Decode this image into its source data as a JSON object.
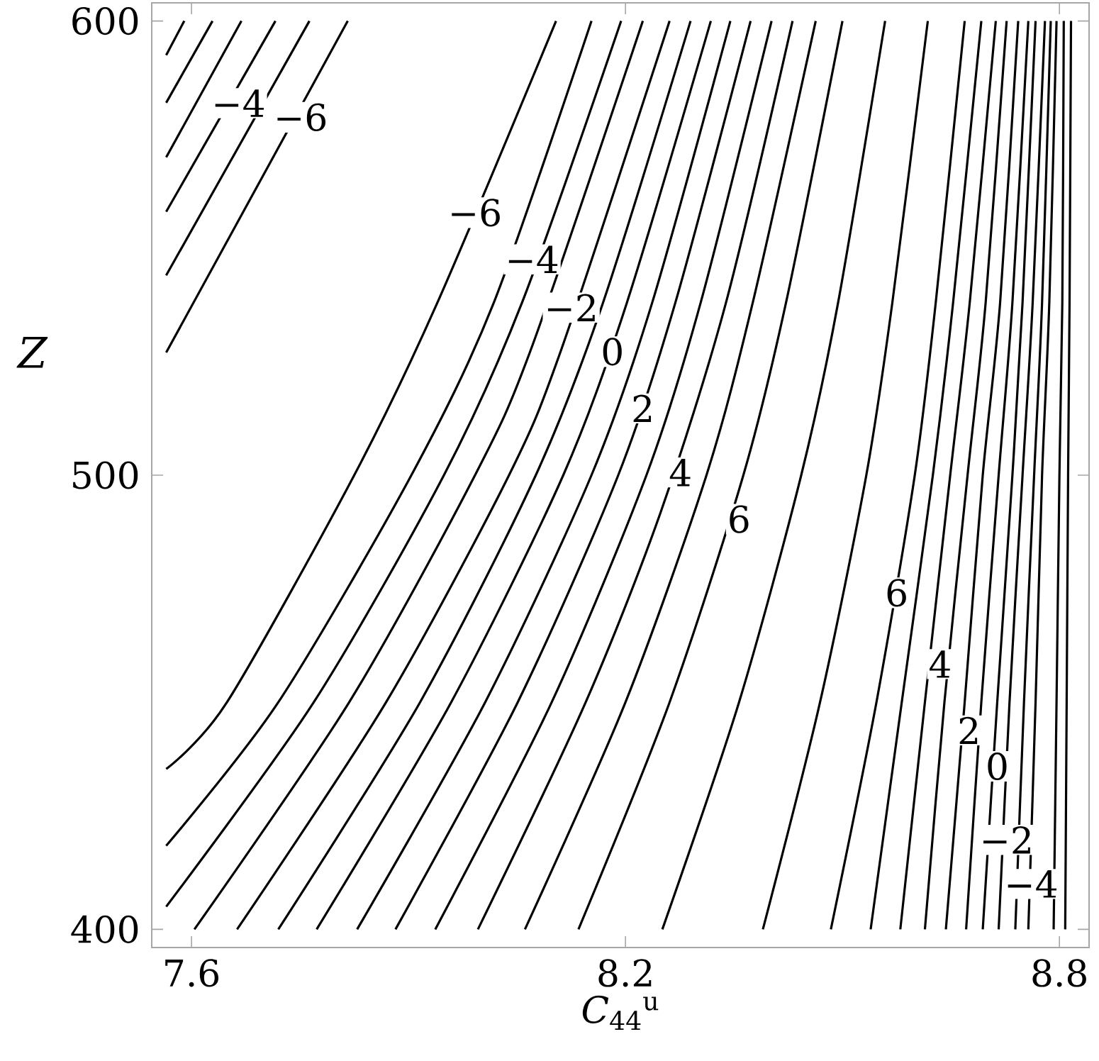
{
  "chart_data": {
    "type": "line",
    "xlabel": "*C*$_{44}$$^{u}$",
    "ylabel": "Z",
    "xlim": [
      7.545,
      8.841
    ],
    "ylim": [
      396,
      604
    ],
    "xticks": [
      7.6,
      8.2,
      8.8
    ],
    "yticks": [
      400,
      500,
      600
    ],
    "grid": false,
    "series": [
      {
        "color": "#000000",
        "x": [
          7.565,
          7.59
        ],
        "values": [
          592.5,
          600
        ]
      },
      {
        "color": "#000000",
        "x": [
          7.565,
          7.629
        ],
        "values": [
          582,
          600
        ]
      },
      {
        "color": "#000000",
        "x": [
          7.565,
          7.669
        ],
        "values": [
          570,
          600
        ]
      },
      {
        "color": "#000000",
        "x": [
          7.565,
          7.716
        ],
        "values": [
          558,
          600
        ]
      },
      {
        "color": "#000000",
        "x": [
          7.565,
          7.763
        ],
        "values": [
          544,
          600
        ]
      },
      {
        "color": "#000000",
        "x": [
          7.565,
          7.816
        ],
        "values": [
          527,
          600
        ]
      },
      {
        "color": "#000000",
        "x": [
          7.565,
          7.649,
          7.825,
          7.94,
          8.104
        ],
        "values": [
          435.3,
          450,
          500,
          538,
          600
        ]
      },
      {
        "color": "#000000",
        "x": [
          7.565,
          7.72,
          7.904,
          8.018,
          8.153
        ],
        "values": [
          418.4,
          450,
          500,
          538,
          600
        ]
      },
      {
        "color": "#000000",
        "x": [
          7.565,
          7.769,
          7.949,
          8.057,
          8.194
        ],
        "values": [
          405,
          450,
          500,
          538,
          600
        ]
      },
      {
        "color": "#000000",
        "x": [
          7.604,
          7.818,
          7.992,
          8.07,
          8.224
        ],
        "values": [
          400,
          450,
          500,
          528,
          600
        ]
      },
      {
        "color": "#000000",
        "x": [
          7.663,
          7.869,
          8.039,
          8.112,
          8.261
        ],
        "values": [
          400,
          450,
          500,
          528,
          600
        ]
      },
      {
        "color": "#000000",
        "x": [
          7.72,
          7.916,
          8.076,
          8.169,
          8.29
        ],
        "values": [
          400,
          450,
          500,
          538,
          600
        ]
      },
      {
        "color": "#000000",
        "x": [
          7.773,
          7.959,
          8.114,
          8.202,
          8.318
        ],
        "values": [
          400,
          450,
          500,
          538,
          600
        ]
      },
      {
        "color": "#000000",
        "x": [
          7.829,
          8.006,
          8.153,
          8.237,
          8.345
        ],
        "values": [
          400,
          450,
          500,
          538,
          600
        ]
      },
      {
        "color": "#000000",
        "x": [
          7.882,
          8.051,
          8.19,
          8.269,
          8.373
        ],
        "values": [
          400,
          450,
          500,
          538,
          600
        ]
      },
      {
        "color": "#000000",
        "x": [
          7.937,
          8.098,
          8.229,
          8.304,
          8.402
        ],
        "values": [
          400,
          450,
          500,
          538,
          600
        ]
      },
      {
        "color": "#000000",
        "x": [
          7.996,
          8.145,
          8.249,
          8.339,
          8.431
        ],
        "values": [
          400,
          450,
          492,
          538,
          600
        ]
      },
      {
        "color": "#000000",
        "x": [
          8.061,
          8.2,
          8.312,
          8.376,
          8.463
        ],
        "values": [
          400,
          450,
          500,
          538,
          600
        ]
      },
      {
        "color": "#000000",
        "x": [
          8.135,
          8.261,
          8.363,
          8.422,
          8.5
        ],
        "values": [
          400,
          450,
          500,
          538,
          600
        ]
      },
      {
        "color": "#000000",
        "x": [
          8.251,
          8.357,
          8.443,
          8.494,
          8.559
        ],
        "values": [
          400,
          450,
          500,
          538,
          600
        ]
      },
      {
        "color": "#000000",
        "x": [
          8.39,
          8.469,
          8.533,
          8.569,
          8.618
        ],
        "values": [
          400,
          450,
          500,
          538,
          600
        ]
      },
      {
        "color": "#000000",
        "x": [
          8.484,
          8.547,
          8.6,
          8.629,
          8.669
        ],
        "values": [
          400,
          450,
          500,
          538,
          600
        ]
      },
      {
        "color": "#000000",
        "x": [
          8.539,
          8.582,
          8.625,
          8.653,
          8.692
        ],
        "values": [
          400,
          450,
          500,
          538,
          600
        ]
      },
      {
        "color": "#000000",
        "x": [
          8.58,
          8.614,
          8.649,
          8.676,
          8.712
        ],
        "values": [
          400,
          450,
          500,
          538,
          600
        ]
      },
      {
        "color": "#000000",
        "x": [
          8.614,
          8.641,
          8.673,
          8.698,
          8.727
        ],
        "values": [
          400,
          450,
          500,
          538,
          600
        ]
      },
      {
        "color": "#000000",
        "x": [
          8.643,
          8.669,
          8.694,
          8.718,
          8.743
        ],
        "values": [
          400,
          450,
          500,
          538,
          600
        ]
      },
      {
        "color": "#000000",
        "x": [
          8.671,
          8.692,
          8.716,
          8.735,
          8.757
        ],
        "values": [
          400,
          450,
          500,
          538,
          600
        ]
      },
      {
        "color": "#000000",
        "x": [
          8.694,
          8.714,
          8.735,
          8.749,
          8.767
        ],
        "values": [
          400,
          450,
          500,
          538,
          600
        ]
      },
      {
        "color": "#000000",
        "x": [
          8.716,
          8.731,
          8.749,
          8.763,
          8.78
        ],
        "values": [
          400,
          450,
          500,
          538,
          600
        ]
      },
      {
        "color": "#000000",
        "x": [
          8.739,
          8.751,
          8.765,
          8.776,
          8.788
        ],
        "values": [
          400,
          450,
          500,
          538,
          600
        ]
      },
      {
        "color": "#000000",
        "x": [
          8.757,
          8.767,
          8.776,
          8.786,
          8.796
        ],
        "values": [
          400,
          450,
          500,
          538,
          600
        ]
      },
      {
        "color": "#000000",
        "x": [
          8.792,
          8.796,
          8.8,
          8.804,
          8.806
        ],
        "values": [
          400,
          450,
          500,
          538,
          600
        ]
      },
      {
        "color": "#000000",
        "x": [
          8.808,
          8.81,
          8.812,
          8.814,
          8.816
        ],
        "values": [
          400,
          450,
          500,
          538,
          600
        ]
      }
    ],
    "annotations": [
      {
        "text": "−4",
        "x": 7.665,
        "y": 581.9
      },
      {
        "text": "−6",
        "x": 7.751,
        "y": 578.8
      },
      {
        "text": "−6",
        "x": 7.992,
        "y": 557.8
      },
      {
        "text": "−4",
        "x": 8.071,
        "y": 547.5
      },
      {
        "text": "−2",
        "x": 8.125,
        "y": 536.9
      },
      {
        "text": "0",
        "x": 8.182,
        "y": 527.2
      },
      {
        "text": "2",
        "x": 8.224,
        "y": 514.7
      },
      {
        "text": "4",
        "x": 8.276,
        "y": 500.6
      },
      {
        "text": "6",
        "x": 8.357,
        "y": 490.3
      },
      {
        "text": "6",
        "x": 8.575,
        "y": 474.1
      },
      {
        "text": "4",
        "x": 8.635,
        "y": 458.4
      },
      {
        "text": "2",
        "x": 8.675,
        "y": 443.8
      },
      {
        "text": "0",
        "x": 8.714,
        "y": 435.9
      },
      {
        "text": "−2",
        "x": 8.727,
        "y": 419.7
      },
      {
        "text": "−4",
        "x": 8.761,
        "y": 410.0
      }
    ]
  }
}
